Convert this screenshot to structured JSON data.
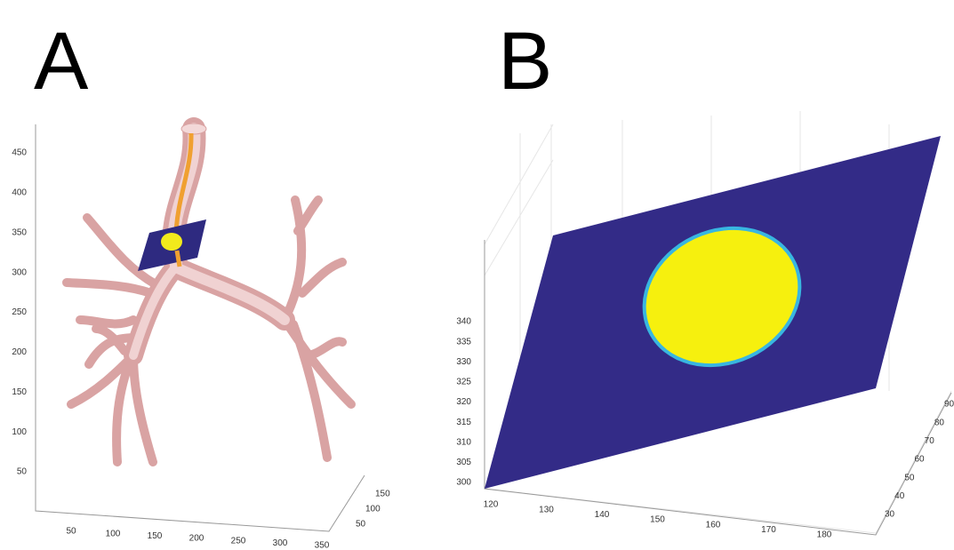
{
  "panels": [
    {
      "label": "A",
      "axes": {
        "xticks": [
          50,
          100,
          150,
          200,
          250,
          300,
          350
        ],
        "yticks": [
          50,
          100,
          150
        ],
        "zticks": [
          50,
          100,
          150,
          200,
          250,
          300,
          350,
          400,
          450
        ]
      }
    },
    {
      "label": "B",
      "axes": {
        "xticks": [
          120,
          130,
          140,
          150,
          160,
          170,
          180
        ],
        "yticks": [
          30,
          40,
          50,
          60,
          70,
          80,
          90
        ],
        "zticks": [
          300,
          305,
          310,
          315,
          320,
          325,
          330,
          335,
          340
        ]
      }
    }
  ]
}
